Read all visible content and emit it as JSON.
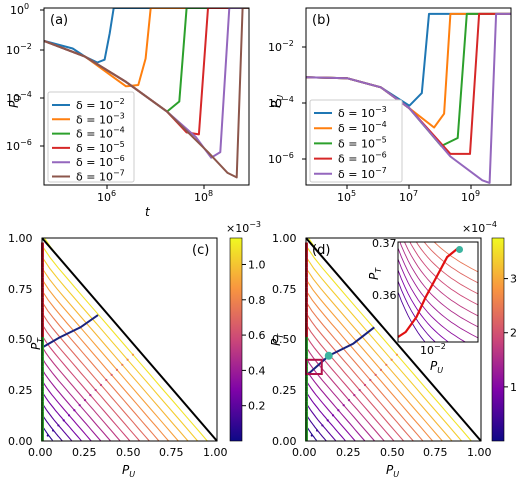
{
  "chart_data": [
    {
      "panel": "(a)",
      "type": "line",
      "xscale": "log",
      "yscale": "log",
      "xlabel": "t",
      "ylabel": "P_U",
      "xlim": [
        10000,
        1000000000
      ],
      "ylim": [
        1e-07,
        1
      ],
      "xticks": [
        "10^6",
        "10^8"
      ],
      "yticks": [
        "10^0",
        "10^-2",
        "10^-4",
        "10^-6"
      ],
      "legend": "bottom-left",
      "series": [
        {
          "name": "δ = 10^-2",
          "color": "#1f77b4",
          "x": [
            10000,
            50000,
            100000,
            200000,
            300000,
            400000,
            500000,
            1000000000
          ],
          "y": [
            0.05,
            0.025,
            0.012,
            0.007,
            0.009,
            0.1,
            1,
            1
          ]
        },
        {
          "name": "δ = 10^-3",
          "color": "#ff7f0e",
          "x": [
            10000,
            100000,
            500000,
            1000000,
            2000000,
            3000000,
            4000000,
            1000000000
          ],
          "y": [
            0.05,
            0.012,
            0.0018,
            0.0008,
            0.0009,
            0.01,
            1,
            1
          ]
        },
        {
          "name": "δ = 10^-4",
          "color": "#2ca02c",
          "x": [
            10000,
            100000,
            1000000,
            5000000,
            10000000,
            20000000,
            30000000,
            1000000000
          ],
          "y": [
            0.05,
            0.012,
            0.0012,
            0.00018,
            8e-05,
            0.0002,
            1,
            1
          ]
        },
        {
          "name": "δ = 10^-5",
          "color": "#d62728",
          "x": [
            10000,
            100000,
            1000000,
            10000000,
            30000000,
            60000000,
            100000000,
            1000000000
          ],
          "y": [
            0.05,
            0.012,
            0.0012,
            8e-05,
            1.2e-05,
            1e-05,
            1,
            1
          ]
        },
        {
          "name": "δ = 10^-6",
          "color": "#9467bd",
          "x": [
            10000,
            100000,
            1000000,
            10000000,
            50000000,
            120000000,
            200000000,
            330000000,
            1000000000
          ],
          "y": [
            0.05,
            0.012,
            0.0012,
            8e-05,
            8e-06,
            1.2e-06,
            2e-06,
            1,
            1
          ]
        },
        {
          "name": "δ = 10^-7",
          "color": "#8c564b",
          "x": [
            10000,
            100000,
            1000000,
            10000000,
            100000000,
            300000000,
            500000000,
            700000000,
            1000000000
          ],
          "y": [
            0.05,
            0.012,
            0.0012,
            8e-05,
            2e-06,
            3e-07,
            2e-07,
            1,
            1
          ]
        }
      ]
    },
    {
      "panel": "(b)",
      "type": "line",
      "xscale": "log",
      "yscale": "log",
      "xlabel": "",
      "ylabel": "P_U",
      "xlim": [
        30000,
        3000000000
      ],
      "ylim": [
        1e-07,
        0.5
      ],
      "xticks": [
        "10^5",
        "10^7",
        "10^9"
      ],
      "yticks": [
        "10^-2",
        "10^-4",
        "10^-6"
      ],
      "legend": "bottom-left",
      "series": [
        {
          "name": "δ = 10^-3",
          "color": "#1f77b4",
          "x": [
            30000,
            300000,
            2000000,
            5000000,
            10000000,
            20000000,
            30000000,
            3000000000
          ],
          "y": [
            0.0012,
            0.0011,
            0.0005,
            0.0002,
            0.0001,
            0.0003,
            0.3,
            0.3
          ]
        },
        {
          "name": "δ = 10^-4",
          "color": "#ff7f0e",
          "x": [
            30000,
            300000,
            2000000,
            10000000,
            40000000,
            70000000,
            100000000,
            3000000000
          ],
          "y": [
            0.0012,
            0.0011,
            0.0005,
            8e-05,
            1.5e-05,
            5e-05,
            0.3,
            0.3
          ]
        },
        {
          "name": "δ = 10^-5",
          "color": "#2ca02c",
          "x": [
            30000,
            300000,
            2000000,
            10000000,
            60000000,
            150000000,
            250000000,
            3000000000
          ],
          "y": [
            0.0012,
            0.0011,
            0.0005,
            8e-05,
            3e-06,
            6e-06,
            0.3,
            0.3
          ]
        },
        {
          "name": "δ = 10^-6",
          "color": "#d62728",
          "x": [
            30000,
            300000,
            2000000,
            10000000,
            100000000,
            300000000,
            500000000,
            3000000000
          ],
          "y": [
            0.0012,
            0.0011,
            0.0005,
            8e-05,
            1.5e-06,
            1.5e-06,
            0.3,
            0.3
          ]
        },
        {
          "name": "δ = 10^-7",
          "color": "#9467bd",
          "x": [
            30000,
            300000,
            2000000,
            10000000,
            100000000,
            600000000,
            900000000,
            1300000000,
            3000000000
          ],
          "y": [
            0.0012,
            0.0011,
            0.0005,
            8e-05,
            1.2e-06,
            1.5e-07,
            1.2e-07,
            0.3,
            0.3
          ]
        }
      ]
    },
    {
      "panel": "(c)",
      "type": "line",
      "xlabel": "P_U",
      "ylabel": "P_T",
      "xlim": [
        0,
        1
      ],
      "ylim": [
        0,
        1
      ],
      "xticks": [
        "0.00",
        "0.25",
        "0.50",
        "0.75",
        "1.00"
      ],
      "yticks": [
        "0.00",
        "0.25",
        "0.50",
        "0.75",
        "1.00"
      ],
      "colorbar": {
        "exponent": "×10^-3",
        "ticks": [
          "0.2",
          "0.4",
          "0.6",
          "0.8",
          "1.0"
        ],
        "max": 0.00115
      },
      "trajectories": "parallel lines P_U + P_T = const, slightly curved near P_U = 0",
      "highlight_path": {
        "color": "#1a237e",
        "x": [
          0.0,
          0.1,
          0.22,
          0.32
        ],
        "y": [
          0.46,
          0.51,
          0.56,
          0.62
        ]
      },
      "fixed_points_upper": {
        "color": "#d62728",
        "y_range": [
          0.5,
          1.0
        ]
      },
      "fixed_points_lower": {
        "color": "#2ca02c",
        "y_range": [
          0.0,
          0.5
        ]
      }
    },
    {
      "panel": "(d)",
      "type": "line",
      "xlabel": "P_U",
      "ylabel": "P_T",
      "xlim": [
        0,
        1
      ],
      "ylim": [
        0,
        1
      ],
      "xticks": [
        "0.00",
        "0.25",
        "0.50",
        "0.75",
        "1.00"
      ],
      "yticks": [
        "0.00",
        "0.25",
        "0.50",
        "0.75",
        "1.00"
      ],
      "colorbar": {
        "exponent": "×10^-4",
        "ticks": [
          "1",
          "2",
          "3"
        ],
        "max": 0.000375
      },
      "highlight_path": {
        "color": "#1a237e",
        "x": [
          0.0,
          0.13,
          0.27,
          0.39
        ],
        "y": [
          0.32,
          0.42,
          0.48,
          0.56
        ]
      },
      "marker": {
        "color": "#3cb4a0",
        "x": 0.13,
        "y": 0.42
      },
      "zoom_box": {
        "x": [
          0.0,
          0.09
        ],
        "y": [
          0.33,
          0.4
        ]
      },
      "inset": {
        "xlabel": "P_U",
        "ylabel": "P_T",
        "xticks": [
          "10^-2"
        ],
        "yticks": [
          "0.37",
          "0.36"
        ],
        "ylim": [
          0.352,
          0.372
        ],
        "red_path": {
          "x": [
            0.0,
            0.0025,
            0.006,
            0.009,
            0.0125,
            0.016,
            0.02
          ],
          "y": [
            0.353,
            0.354,
            0.357,
            0.361,
            0.365,
            0.369,
            0.371
          ]
        },
        "marker": {
          "color": "#3cb4a0",
          "x": 0.02,
          "y": 0.3705
        }
      }
    }
  ]
}
